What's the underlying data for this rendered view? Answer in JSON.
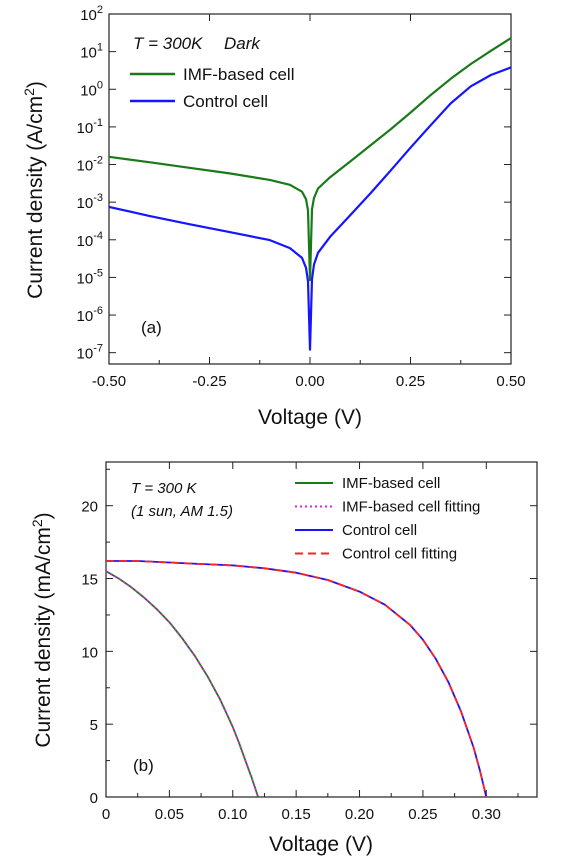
{
  "chart_data": [
    {
      "type": "line",
      "panel_label": "(a)",
      "annotation": [
        "T = 300K",
        "Dark"
      ],
      "xlabel": "Voltage (V)",
      "ylabel_main": "Current density (A/cm",
      "ylabel_sup": "2",
      "ylabel_tail": ")",
      "xscale": "linear",
      "yscale": "log",
      "xlim": [
        -0.5,
        0.5
      ],
      "ylim": [
        5e-08,
        100
      ],
      "xticks": [
        "-0.50",
        "-0.25",
        "0.00",
        "0.25",
        "0.50"
      ],
      "xtick_values": [
        -0.5,
        -0.25,
        0,
        0.25,
        0.5
      ],
      "ytick_exponents": [
        -7,
        -6,
        -5,
        -4,
        -3,
        -2,
        -1,
        0,
        1,
        2
      ],
      "ytick_base": "10",
      "legend_position": "top-left",
      "series": [
        {
          "name": "IMF-based cell",
          "color": "#1a7a1a",
          "x": [
            -0.5,
            -0.4,
            -0.3,
            -0.2,
            -0.1,
            -0.05,
            -0.02,
            -0.01,
            -0.005,
            0,
            0.005,
            0.01,
            0.02,
            0.05,
            0.1,
            0.15,
            0.2,
            0.25,
            0.3,
            0.35,
            0.4,
            0.45,
            0.5
          ],
          "y": [
            0.016,
            0.0115,
            0.0082,
            0.0058,
            0.0039,
            0.0029,
            0.0019,
            0.0012,
            0.0006,
            8.5e-06,
            0.00065,
            0.0013,
            0.0023,
            0.0046,
            0.012,
            0.032,
            0.085,
            0.24,
            0.7,
            1.9,
            4.7,
            10.5,
            23
          ]
        },
        {
          "name": "Control cell",
          "color": "#1515ff",
          "x": [
            -0.5,
            -0.4,
            -0.3,
            -0.2,
            -0.1,
            -0.05,
            -0.02,
            -0.01,
            -0.005,
            0,
            0.005,
            0.01,
            0.02,
            0.05,
            0.1,
            0.15,
            0.2,
            0.25,
            0.3,
            0.35,
            0.4,
            0.45,
            0.5
          ],
          "y": [
            0.00075,
            0.00043,
            0.00026,
            0.00016,
            9.8e-05,
            6e-05,
            3.3e-05,
            1.8e-05,
            8e-06,
            1.2e-07,
            9e-06,
            2.2e-05,
            4.5e-05,
            0.00012,
            0.00045,
            0.0017,
            0.0068,
            0.028,
            0.11,
            0.42,
            1.2,
            2.4,
            3.8
          ]
        }
      ]
    },
    {
      "type": "line",
      "panel_label": "(b)",
      "annotation": [
        "T = 300 K",
        "(1 sun, AM 1.5)"
      ],
      "xlabel": "Voltage (V)",
      "ylabel_main": "Current density (mA/cm",
      "ylabel_sup": "2",
      "ylabel_tail": ")",
      "xlim": [
        0,
        0.34
      ],
      "ylim": [
        0,
        23
      ],
      "xticks": [
        "0",
        "0.05",
        "0.10",
        "0.15",
        "0.20",
        "0.25",
        "0.30"
      ],
      "xtick_values": [
        0,
        0.05,
        0.1,
        0.15,
        0.2,
        0.25,
        0.3
      ],
      "yticks": [
        "0",
        "5",
        "10",
        "15",
        "20"
      ],
      "ytick_values": [
        0,
        5,
        10,
        15,
        20
      ],
      "legend_position": "top-right",
      "series": [
        {
          "name": "IMF-based cell",
          "color": "#1a7a1a",
          "style": "solid",
          "x": [
            0,
            0.01,
            0.02,
            0.03,
            0.04,
            0.05,
            0.06,
            0.07,
            0.08,
            0.09,
            0.1,
            0.105,
            0.11,
            0.115,
            0.12
          ],
          "y": [
            15.5,
            15.0,
            14.4,
            13.7,
            12.9,
            12.0,
            10.9,
            9.7,
            8.3,
            6.7,
            4.8,
            3.7,
            2.5,
            1.3,
            0
          ]
        },
        {
          "name": "IMF-based cell fitting",
          "color": "#e020e0",
          "style": "dotted",
          "x": [
            0,
            0.01,
            0.02,
            0.03,
            0.04,
            0.05,
            0.06,
            0.07,
            0.08,
            0.09,
            0.1,
            0.105,
            0.11,
            0.115,
            0.12
          ],
          "y": [
            15.5,
            15.0,
            14.4,
            13.7,
            12.9,
            12.0,
            10.9,
            9.7,
            8.3,
            6.7,
            4.8,
            3.7,
            2.5,
            1.3,
            0
          ]
        },
        {
          "name": "Control cell",
          "color": "#1515ff",
          "style": "solid",
          "x": [
            0,
            0.025,
            0.05,
            0.075,
            0.1,
            0.125,
            0.15,
            0.175,
            0.2,
            0.22,
            0.24,
            0.25,
            0.26,
            0.27,
            0.28,
            0.29,
            0.295,
            0.3
          ],
          "y": [
            16.2,
            16.2,
            16.1,
            16.0,
            15.9,
            15.7,
            15.4,
            14.9,
            14.1,
            13.2,
            11.8,
            10.8,
            9.5,
            7.9,
            5.9,
            3.4,
            1.8,
            0
          ]
        },
        {
          "name": "Control cell fitting",
          "color": "#ff2020",
          "style": "dashed",
          "x": [
            0,
            0.025,
            0.05,
            0.075,
            0.1,
            0.125,
            0.15,
            0.175,
            0.2,
            0.22,
            0.24,
            0.25,
            0.26,
            0.27,
            0.28,
            0.29,
            0.295,
            0.3
          ],
          "y": [
            16.2,
            16.2,
            16.1,
            16.0,
            15.9,
            15.7,
            15.4,
            14.9,
            14.1,
            13.2,
            11.8,
            10.8,
            9.5,
            7.9,
            5.9,
            3.4,
            1.8,
            0
          ]
        }
      ]
    }
  ]
}
